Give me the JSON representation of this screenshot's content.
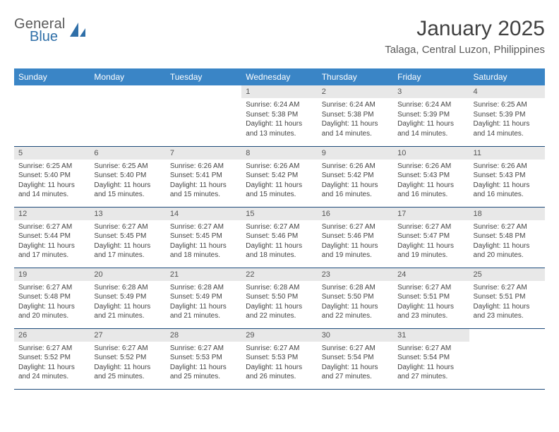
{
  "logo": {
    "top": "General",
    "bottom": "Blue",
    "icon_color": "#2f6fa8",
    "text_gray": "#5a5a5a"
  },
  "header": {
    "title": "January 2025",
    "location": "Talaga, Central Luzon, Philippines"
  },
  "colors": {
    "header_bg": "#3a85c6",
    "header_fg": "#ffffff",
    "daynum_bg": "#e8e8e8",
    "week_border": "#1d4a7a",
    "body_text": "#444444"
  },
  "weekdays": [
    "Sunday",
    "Monday",
    "Tuesday",
    "Wednesday",
    "Thursday",
    "Friday",
    "Saturday"
  ],
  "weeks": [
    [
      {
        "blank": true
      },
      {
        "blank": true
      },
      {
        "blank": true
      },
      {
        "day": "1",
        "sunrise": "Sunrise: 6:24 AM",
        "sunset": "Sunset: 5:38 PM",
        "daylight": "Daylight: 11 hours and 13 minutes."
      },
      {
        "day": "2",
        "sunrise": "Sunrise: 6:24 AM",
        "sunset": "Sunset: 5:38 PM",
        "daylight": "Daylight: 11 hours and 14 minutes."
      },
      {
        "day": "3",
        "sunrise": "Sunrise: 6:24 AM",
        "sunset": "Sunset: 5:39 PM",
        "daylight": "Daylight: 11 hours and 14 minutes."
      },
      {
        "day": "4",
        "sunrise": "Sunrise: 6:25 AM",
        "sunset": "Sunset: 5:39 PM",
        "daylight": "Daylight: 11 hours and 14 minutes."
      }
    ],
    [
      {
        "day": "5",
        "sunrise": "Sunrise: 6:25 AM",
        "sunset": "Sunset: 5:40 PM",
        "daylight": "Daylight: 11 hours and 14 minutes."
      },
      {
        "day": "6",
        "sunrise": "Sunrise: 6:25 AM",
        "sunset": "Sunset: 5:40 PM",
        "daylight": "Daylight: 11 hours and 15 minutes."
      },
      {
        "day": "7",
        "sunrise": "Sunrise: 6:26 AM",
        "sunset": "Sunset: 5:41 PM",
        "daylight": "Daylight: 11 hours and 15 minutes."
      },
      {
        "day": "8",
        "sunrise": "Sunrise: 6:26 AM",
        "sunset": "Sunset: 5:42 PM",
        "daylight": "Daylight: 11 hours and 15 minutes."
      },
      {
        "day": "9",
        "sunrise": "Sunrise: 6:26 AM",
        "sunset": "Sunset: 5:42 PM",
        "daylight": "Daylight: 11 hours and 16 minutes."
      },
      {
        "day": "10",
        "sunrise": "Sunrise: 6:26 AM",
        "sunset": "Sunset: 5:43 PM",
        "daylight": "Daylight: 11 hours and 16 minutes."
      },
      {
        "day": "11",
        "sunrise": "Sunrise: 6:26 AM",
        "sunset": "Sunset: 5:43 PM",
        "daylight": "Daylight: 11 hours and 16 minutes."
      }
    ],
    [
      {
        "day": "12",
        "sunrise": "Sunrise: 6:27 AM",
        "sunset": "Sunset: 5:44 PM",
        "daylight": "Daylight: 11 hours and 17 minutes."
      },
      {
        "day": "13",
        "sunrise": "Sunrise: 6:27 AM",
        "sunset": "Sunset: 5:45 PM",
        "daylight": "Daylight: 11 hours and 17 minutes."
      },
      {
        "day": "14",
        "sunrise": "Sunrise: 6:27 AM",
        "sunset": "Sunset: 5:45 PM",
        "daylight": "Daylight: 11 hours and 18 minutes."
      },
      {
        "day": "15",
        "sunrise": "Sunrise: 6:27 AM",
        "sunset": "Sunset: 5:46 PM",
        "daylight": "Daylight: 11 hours and 18 minutes."
      },
      {
        "day": "16",
        "sunrise": "Sunrise: 6:27 AM",
        "sunset": "Sunset: 5:46 PM",
        "daylight": "Daylight: 11 hours and 19 minutes."
      },
      {
        "day": "17",
        "sunrise": "Sunrise: 6:27 AM",
        "sunset": "Sunset: 5:47 PM",
        "daylight": "Daylight: 11 hours and 19 minutes."
      },
      {
        "day": "18",
        "sunrise": "Sunrise: 6:27 AM",
        "sunset": "Sunset: 5:48 PM",
        "daylight": "Daylight: 11 hours and 20 minutes."
      }
    ],
    [
      {
        "day": "19",
        "sunrise": "Sunrise: 6:27 AM",
        "sunset": "Sunset: 5:48 PM",
        "daylight": "Daylight: 11 hours and 20 minutes."
      },
      {
        "day": "20",
        "sunrise": "Sunrise: 6:28 AM",
        "sunset": "Sunset: 5:49 PM",
        "daylight": "Daylight: 11 hours and 21 minutes."
      },
      {
        "day": "21",
        "sunrise": "Sunrise: 6:28 AM",
        "sunset": "Sunset: 5:49 PM",
        "daylight": "Daylight: 11 hours and 21 minutes."
      },
      {
        "day": "22",
        "sunrise": "Sunrise: 6:28 AM",
        "sunset": "Sunset: 5:50 PM",
        "daylight": "Daylight: 11 hours and 22 minutes."
      },
      {
        "day": "23",
        "sunrise": "Sunrise: 6:28 AM",
        "sunset": "Sunset: 5:50 PM",
        "daylight": "Daylight: 11 hours and 22 minutes."
      },
      {
        "day": "24",
        "sunrise": "Sunrise: 6:27 AM",
        "sunset": "Sunset: 5:51 PM",
        "daylight": "Daylight: 11 hours and 23 minutes."
      },
      {
        "day": "25",
        "sunrise": "Sunrise: 6:27 AM",
        "sunset": "Sunset: 5:51 PM",
        "daylight": "Daylight: 11 hours and 23 minutes."
      }
    ],
    [
      {
        "day": "26",
        "sunrise": "Sunrise: 6:27 AM",
        "sunset": "Sunset: 5:52 PM",
        "daylight": "Daylight: 11 hours and 24 minutes."
      },
      {
        "day": "27",
        "sunrise": "Sunrise: 6:27 AM",
        "sunset": "Sunset: 5:52 PM",
        "daylight": "Daylight: 11 hours and 25 minutes."
      },
      {
        "day": "28",
        "sunrise": "Sunrise: 6:27 AM",
        "sunset": "Sunset: 5:53 PM",
        "daylight": "Daylight: 11 hours and 25 minutes."
      },
      {
        "day": "29",
        "sunrise": "Sunrise: 6:27 AM",
        "sunset": "Sunset: 5:53 PM",
        "daylight": "Daylight: 11 hours and 26 minutes."
      },
      {
        "day": "30",
        "sunrise": "Sunrise: 6:27 AM",
        "sunset": "Sunset: 5:54 PM",
        "daylight": "Daylight: 11 hours and 27 minutes."
      },
      {
        "day": "31",
        "sunrise": "Sunrise: 6:27 AM",
        "sunset": "Sunset: 5:54 PM",
        "daylight": "Daylight: 11 hours and 27 minutes."
      },
      {
        "blank": true
      }
    ]
  ]
}
